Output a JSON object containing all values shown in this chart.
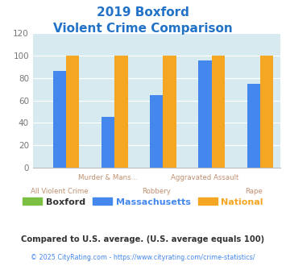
{
  "title_line1": "2019 Boxford",
  "title_line2": "Violent Crime Comparison",
  "title_color": "#2272c8",
  "x_labels_top": [
    "",
    "Murder & Mans...",
    "",
    "Aggravated Assault",
    ""
  ],
  "x_labels_bot": [
    "All Violent Crime",
    "",
    "Robbery",
    "",
    "Rape"
  ],
  "boxford": [
    0,
    0,
    0,
    0,
    0
  ],
  "massachusetts": [
    86,
    45,
    65,
    96,
    75
  ],
  "national": [
    100,
    100,
    100,
    100,
    100
  ],
  "boxford_color": "#7bc043",
  "massachusetts_color": "#4488ee",
  "national_color": "#f5a623",
  "ylim": [
    0,
    120
  ],
  "yticks": [
    0,
    20,
    40,
    60,
    80,
    100,
    120
  ],
  "plot_bg_color": "#d6eaf0",
  "legend_labels": [
    "Boxford",
    "Massachusetts",
    "National"
  ],
  "legend_text_colors": [
    "#333333",
    "#4488ee",
    "#f5a623"
  ],
  "footnote1": "Compared to U.S. average. (U.S. average equals 100)",
  "footnote2": "© 2025 CityRating.com - https://www.cityrating.com/crime-statistics/",
  "footnote1_color": "#333333",
  "footnote2_color": "#4488ee",
  "xlabel_color": "#c09070"
}
